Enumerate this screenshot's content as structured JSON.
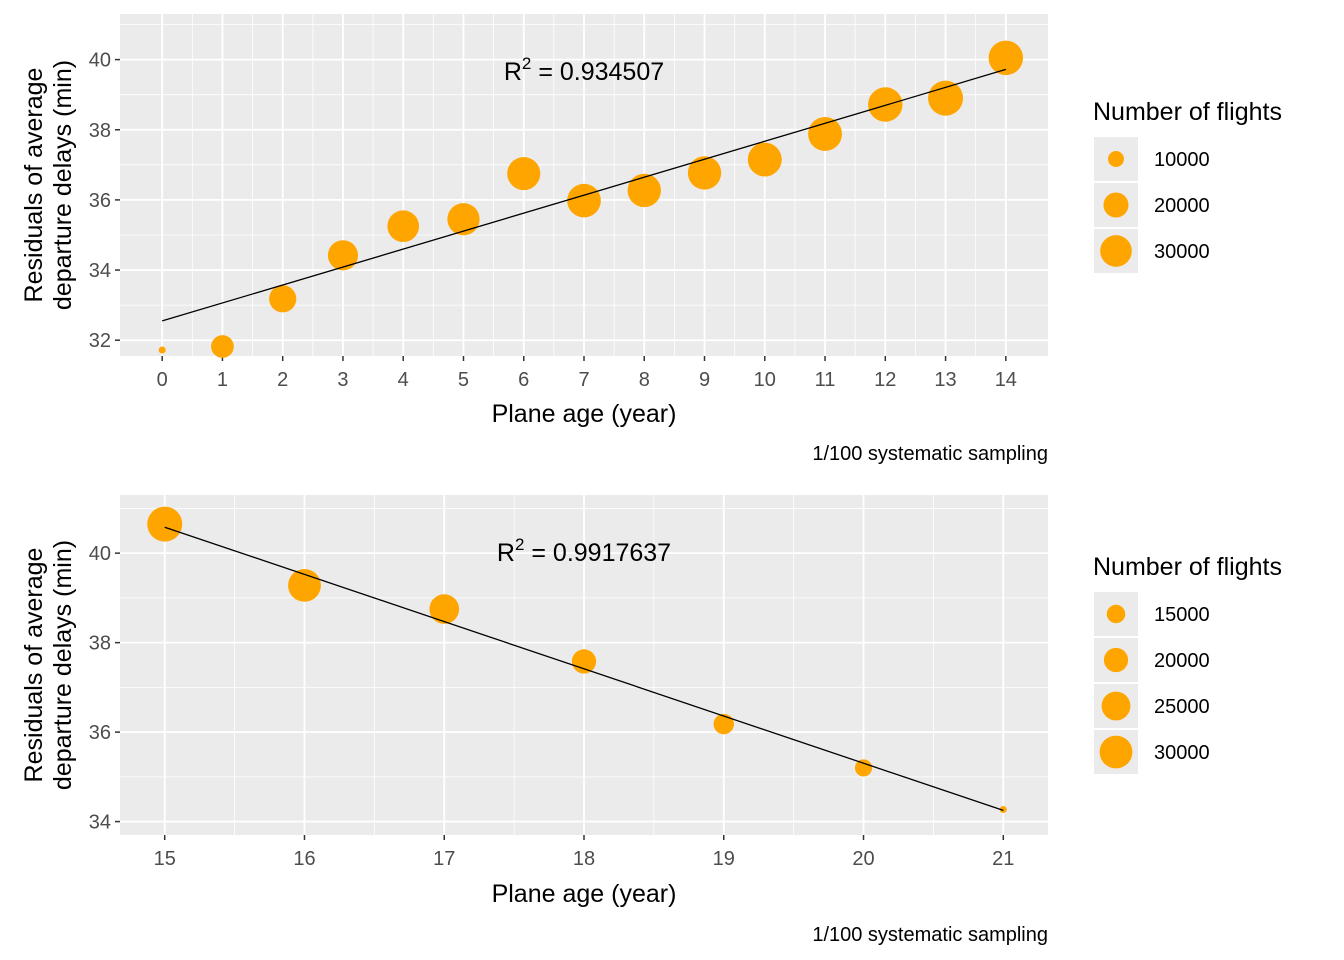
{
  "colors": {
    "point": "#FFA500",
    "panel_bg": "#EBEBEB",
    "grid": "#FFFFFF",
    "line": "#000000",
    "tick_text": "#4D4D4D"
  },
  "chart_data": [
    {
      "type": "scatter",
      "xlabel": "Plane age (year)",
      "ylabel_line1": "Residuals of average",
      "ylabel_line2": "departure delays (min)",
      "caption": "1/100 systematic sampling",
      "annotation": {
        "prefix": "R",
        "sup": "2",
        "value": " = 0.934507"
      },
      "xlim": [
        -0.7,
        14.7
      ],
      "ylim": [
        31.55,
        41.3
      ],
      "xticks": [
        "0",
        "1",
        "2",
        "3",
        "4",
        "5",
        "6",
        "7",
        "8",
        "9",
        "10",
        "11",
        "12",
        "13",
        "14"
      ],
      "yticks": [
        "32",
        "34",
        "36",
        "38",
        "40"
      ],
      "legend": {
        "title": "Number of flights",
        "labels": [
          "10000",
          "20000",
          "30000"
        ],
        "values": [
          10000,
          20000,
          30000
        ]
      },
      "size_range": [
        4500,
        36000
      ],
      "points": [
        {
          "x": 0,
          "y": 31.72,
          "n": 4500
        },
        {
          "x": 1,
          "y": 31.82,
          "n": 17000
        },
        {
          "x": 2,
          "y": 33.18,
          "n": 23000
        },
        {
          "x": 3,
          "y": 34.42,
          "n": 27500
        },
        {
          "x": 4,
          "y": 35.25,
          "n": 30000
        },
        {
          "x": 5,
          "y": 35.45,
          "n": 31000
        },
        {
          "x": 6,
          "y": 36.75,
          "n": 32500
        },
        {
          "x": 7,
          "y": 35.98,
          "n": 33500
        },
        {
          "x": 8,
          "y": 36.27,
          "n": 33000
        },
        {
          "x": 9,
          "y": 36.77,
          "n": 33000
        },
        {
          "x": 10,
          "y": 37.15,
          "n": 34000
        },
        {
          "x": 11,
          "y": 37.88,
          "n": 34000
        },
        {
          "x": 12,
          "y": 38.72,
          "n": 35000
        },
        {
          "x": 13,
          "y": 38.9,
          "n": 36000
        },
        {
          "x": 14,
          "y": 40.05,
          "n": 35000
        }
      ],
      "fit": {
        "x": [
          0,
          14
        ],
        "y": [
          32.55,
          39.72
        ]
      }
    },
    {
      "type": "scatter",
      "xlabel": "Plane age (year)",
      "ylabel_line1": "Residuals of average",
      "ylabel_line2": "departure delays (min)",
      "caption": "1/100 systematic sampling",
      "annotation": {
        "prefix": "R",
        "sup": "2",
        "value": " = 0.9917637"
      },
      "xlim": [
        14.68,
        21.32
      ],
      "ylim": [
        33.7,
        41.3
      ],
      "xticks": [
        "15",
        "16",
        "17",
        "18",
        "19",
        "20",
        "21"
      ],
      "yticks": [
        "34",
        "36",
        "38",
        "40"
      ],
      "legend": {
        "title": "Number of flights",
        "labels": [
          "15000",
          "20000",
          "25000",
          "30000"
        ],
        "values": [
          15000,
          20000,
          25000,
          30000
        ]
      },
      "size_range": [
        9000,
        33000
      ],
      "points": [
        {
          "x": 15,
          "y": 40.65,
          "n": 33000
        },
        {
          "x": 16,
          "y": 39.28,
          "n": 30000
        },
        {
          "x": 17,
          "y": 38.75,
          "n": 26000
        },
        {
          "x": 18,
          "y": 37.58,
          "n": 20000
        },
        {
          "x": 19,
          "y": 36.18,
          "n": 16500
        },
        {
          "x": 20,
          "y": 35.2,
          "n": 14000
        },
        {
          "x": 21,
          "y": 34.27,
          "n": 9000
        }
      ],
      "fit": {
        "x": [
          15,
          21
        ],
        "y": [
          40.58,
          34.25
        ]
      }
    }
  ]
}
